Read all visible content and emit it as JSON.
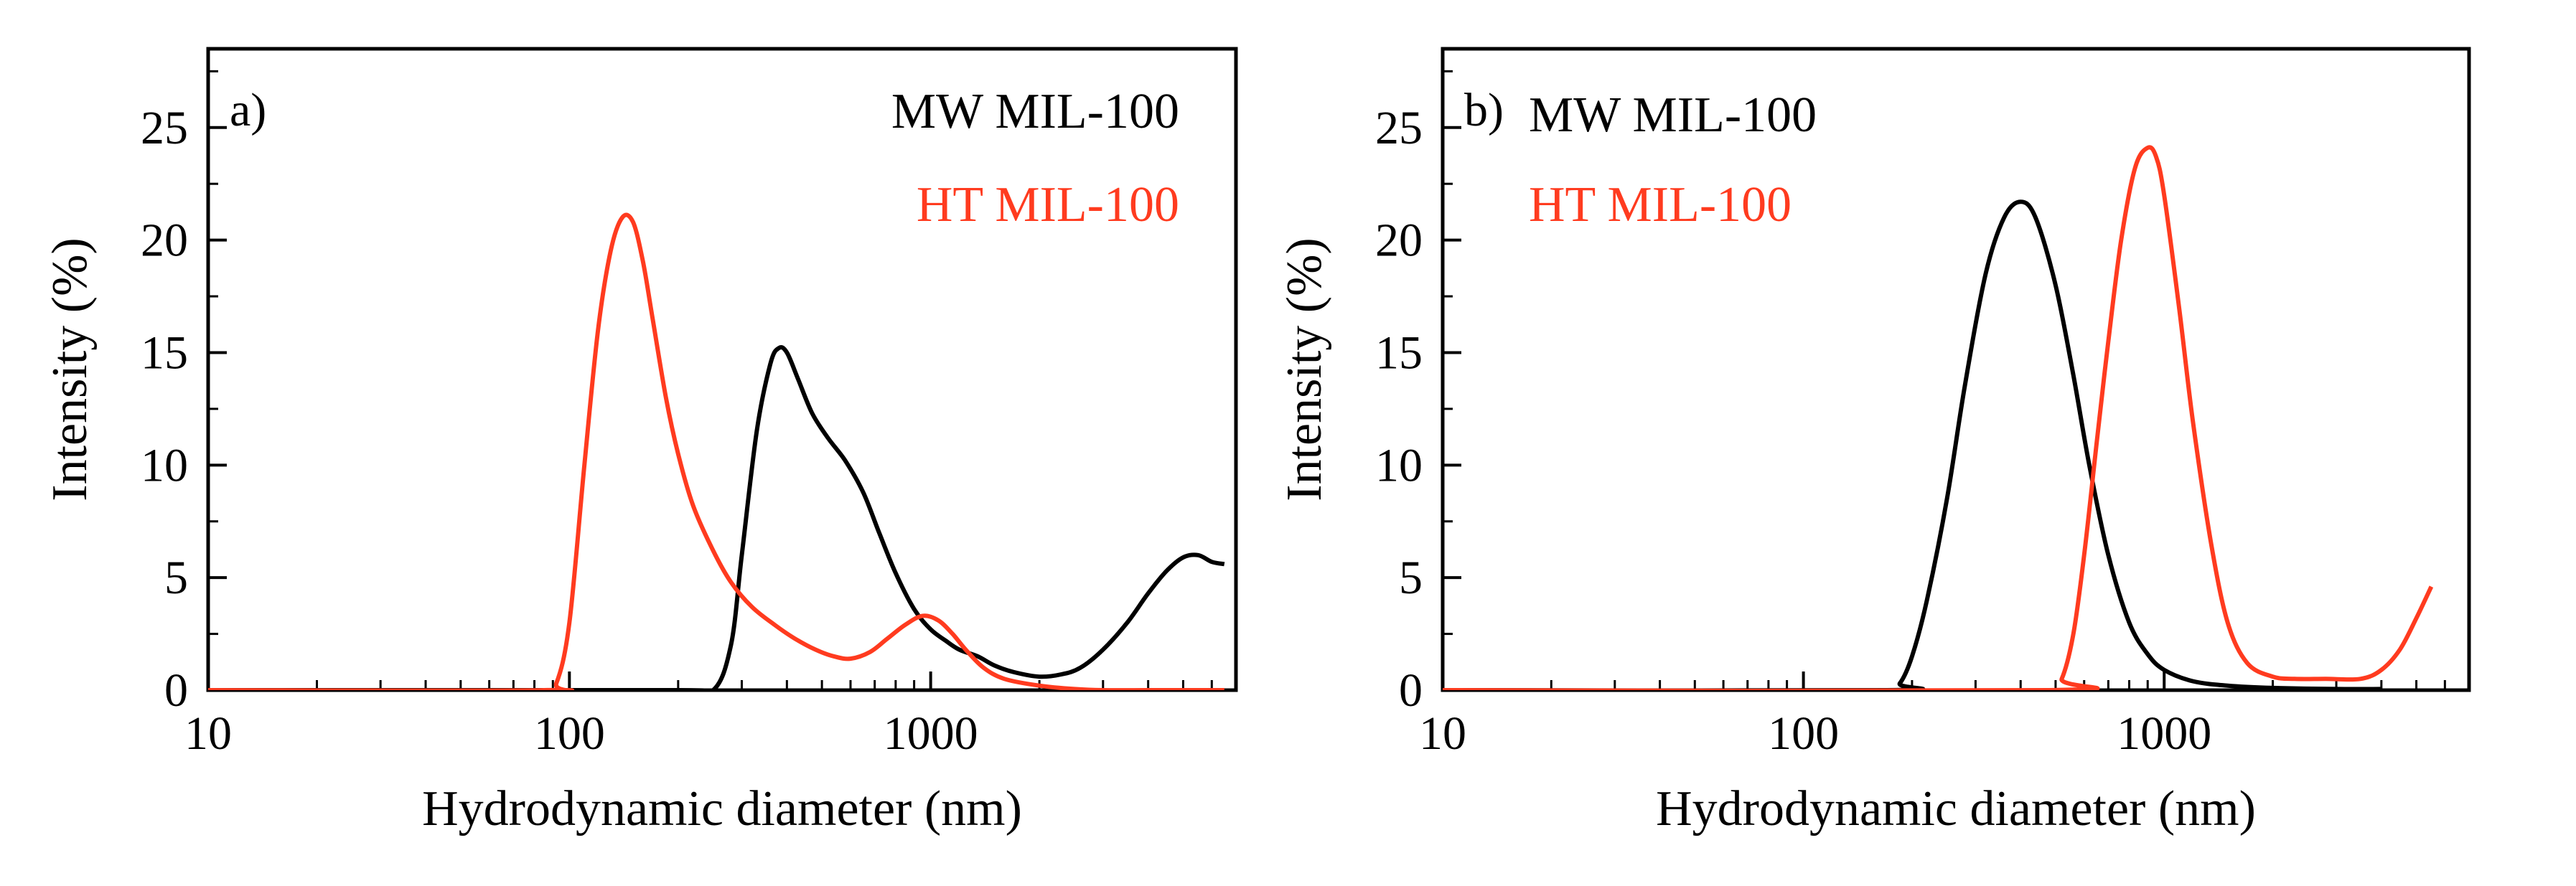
{
  "chart_data": [
    {
      "type": "line",
      "panel_label": "a)",
      "xlabel": "Hydrodynamic diameter (nm)",
      "ylabel": "Intensity (%)",
      "xscale": "log",
      "xlim": [
        10,
        7000
      ],
      "ylim": [
        0,
        28.5
      ],
      "xticks": [
        10,
        100,
        1000
      ],
      "xtick_labels": [
        "10",
        "100",
        "1000"
      ],
      "yticks": [
        0,
        5,
        10,
        15,
        20,
        25
      ],
      "ytick_labels": [
        "0",
        "5",
        "10",
        "15",
        "20",
        "25"
      ],
      "legend_position": "top-right",
      "series": [
        {
          "name": "MW MIL-100",
          "color": "#000000",
          "x": [
            10,
            200,
            250,
            280,
            300,
            330,
            360,
            380,
            400,
            430,
            470,
            520,
            580,
            650,
            720,
            800,
            900,
            1000,
            1100,
            1200,
            1350,
            1500,
            1700,
            2000,
            2300,
            2600,
            3000,
            3500,
            4000,
            4500,
            5000,
            5500,
            6000,
            6500
          ],
          "y": [
            0,
            0,
            0,
            2,
            6,
            11.5,
            14.5,
            15.2,
            15,
            13.8,
            12.3,
            11.2,
            10.2,
            8.8,
            7,
            5.2,
            3.6,
            2.7,
            2.2,
            1.8,
            1.5,
            1.1,
            0.8,
            0.6,
            0.7,
            1.0,
            1.8,
            3.0,
            4.3,
            5.3,
            5.9,
            6.0,
            5.7,
            5.6
          ]
        },
        {
          "name": "HT MIL-100",
          "color": "#ff3b1f",
          "x": [
            10,
            85,
            92,
            100,
            110,
            120,
            130,
            140,
            150,
            160,
            170,
            185,
            200,
            220,
            250,
            280,
            320,
            370,
            420,
            480,
            540,
            600,
            680,
            760,
            850,
            950,
            1050,
            1150,
            1250,
            1400,
            1600,
            2000,
            2500,
            3000,
            4000,
            5000,
            6500
          ],
          "y": [
            0,
            0,
            0.3,
            3,
            10,
            16,
            19.5,
            21,
            20.8,
            19,
            16.5,
            13,
            10.5,
            8.2,
            6.2,
            4.8,
            3.7,
            2.9,
            2.3,
            1.8,
            1.5,
            1.4,
            1.7,
            2.3,
            2.9,
            3.3,
            3.1,
            2.5,
            1.8,
            1.0,
            0.5,
            0.2,
            0.05,
            0,
            0,
            0,
            0
          ]
        }
      ]
    },
    {
      "type": "line",
      "panel_label": "b)",
      "xlabel": "Hydrodynamic diameter (nm)",
      "ylabel": "Intensity (%)",
      "xscale": "log",
      "xlim": [
        10,
        7000
      ],
      "ylim": [
        0,
        28.5
      ],
      "xticks": [
        10,
        100,
        1000
      ],
      "xtick_labels": [
        "10",
        "100",
        "1000"
      ],
      "yticks": [
        0,
        5,
        10,
        15,
        20,
        25
      ],
      "ytick_labels": [
        "0",
        "5",
        "10",
        "15",
        "20",
        "25"
      ],
      "legend_position": "top-left",
      "series": [
        {
          "name": "MW MIL-100",
          "color": "#000000",
          "x": [
            10,
            170,
            185,
            200,
            220,
            250,
            280,
            320,
            360,
            400,
            440,
            500,
            560,
            620,
            700,
            800,
            900,
            1000,
            1200,
            1500,
            2000,
            3000,
            4000
          ],
          "y": [
            0,
            0,
            0.3,
            1.5,
            4,
            8.5,
            13.5,
            18.5,
            21,
            21.7,
            21,
            18,
            14,
            10,
            6,
            3,
            1.6,
            0.9,
            0.4,
            0.2,
            0.1,
            0.05,
            0.05
          ]
        },
        {
          "name": "HT MIL-100",
          "color": "#ff3b1f",
          "x": [
            10,
            480,
            520,
            560,
            600,
            650,
            700,
            760,
            830,
            900,
            950,
            1000,
            1100,
            1200,
            1350,
            1500,
            1700,
            2000,
            2300,
            2800,
            3500,
            4000,
            4500,
            5000,
            5500
          ],
          "y": [
            0,
            0,
            0.5,
            2.5,
            6,
            11,
            15.5,
            20,
            23.2,
            24.1,
            23.7,
            22,
            17,
            12,
            6.5,
            3,
            1.2,
            0.6,
            0.5,
            0.5,
            0.5,
            0.9,
            1.8,
            3.2,
            4.6
          ]
        }
      ]
    }
  ]
}
